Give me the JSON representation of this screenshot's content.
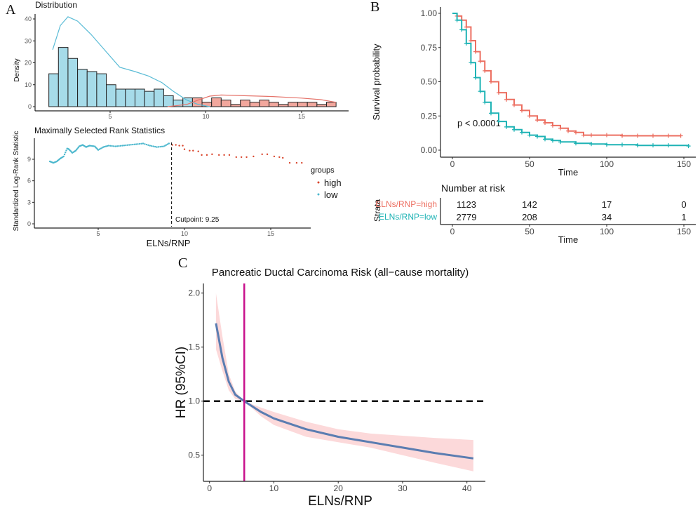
{
  "panel_labels": [
    "A",
    "B",
    "C"
  ],
  "chart_data": [
    {
      "id": "distribution",
      "type": "bar",
      "title": "Distribution",
      "xlabel": "",
      "ylabel": "Density",
      "xlim": [
        1.2,
        17.5
      ],
      "ylim": [
        0,
        42
      ],
      "xticks": [
        5,
        10,
        15
      ],
      "yticks": [
        0,
        10,
        20,
        30,
        40
      ],
      "bin_start": 1.8,
      "bin_width": 0.5,
      "colors": {
        "low": "#a6dbe9",
        "high": "#f2a79d",
        "low_line": "#5bbcd6",
        "high_line": "#e5736a"
      },
      "series": [
        {
          "name": "low",
          "values": [
            15,
            27,
            22,
            17,
            16,
            15,
            10,
            8,
            8,
            8,
            7,
            8,
            5,
            3,
            4
          ]
        },
        {
          "name": "high",
          "values": [
            4,
            2,
            4,
            3,
            1,
            3,
            2,
            3,
            2,
            1,
            2,
            2,
            2,
            1,
            2
          ]
        }
      ],
      "density": [
        {
          "name": "low",
          "x": [
            2,
            2.4,
            2.8,
            3.3,
            4,
            4.8,
            5.5,
            6.3,
            7,
            7.7,
            8.3,
            9,
            9.6,
            10.2
          ],
          "y": [
            26,
            37,
            41,
            39,
            33,
            25,
            18,
            16,
            14,
            11,
            7,
            3,
            1,
            0
          ]
        },
        {
          "name": "high",
          "x": [
            8,
            9,
            9.6,
            10.2,
            10.8,
            12,
            13.5,
            15,
            16,
            16.8
          ],
          "y": [
            0,
            1,
            3,
            4.8,
            5.3,
            5,
            4.6,
            3.9,
            3.2,
            2
          ]
        }
      ]
    },
    {
      "id": "maxstat",
      "type": "scatter",
      "title": "Maximally Selected Rank Statistics",
      "xlabel": "ELNs/RNP",
      "ylabel": "Standardized Log-Rank Statistic",
      "xlim": [
        1.5,
        17.5
      ],
      "ylim": [
        0,
        11.5
      ],
      "xticks": [
        5,
        10,
        15
      ],
      "yticks": [
        0,
        3,
        6,
        9
      ],
      "cutpoint": 9.25,
      "cutpoint_label": "Cutpoint: 9.25",
      "legend_title": "groups",
      "legend_position": "right",
      "colors": {
        "high": "#d9452c",
        "low": "#4bb7cd"
      },
      "series": [
        {
          "name": "high",
          "x": [
            9.3,
            9.5,
            9.7,
            9.9,
            10,
            10.3,
            10.5,
            10.8,
            11,
            11.3,
            11.6,
            12,
            12.3,
            12.6,
            13,
            13.3,
            13.6,
            14,
            14.5,
            14.8,
            15.2,
            15.5,
            15.7,
            16.1,
            16.5,
            16.8
          ],
          "y": [
            11.0,
            11.0,
            10.9,
            10.9,
            10.4,
            10.2,
            10.2,
            10.1,
            9.6,
            9.6,
            9.7,
            9.6,
            9.6,
            9.6,
            9.3,
            9.3,
            9.3,
            9.4,
            9.7,
            9.7,
            9.4,
            9.3,
            9.2,
            8.5,
            8.5,
            8.5
          ]
        },
        {
          "name": "low",
          "x": [
            2.2,
            2.4,
            2.6,
            2.8,
            3.0,
            3.2,
            3.3,
            3.5,
            3.7,
            3.9,
            4.1,
            4.3,
            4.5,
            4.8,
            5.0,
            5.3,
            5.6,
            6.0,
            6.4,
            6.8,
            7.2,
            7.6,
            8.0,
            8.4,
            8.8,
            9.1
          ],
          "y": [
            8.7,
            8.5,
            8.7,
            9.1,
            9.4,
            10.5,
            10.4,
            9.9,
            10.2,
            10.8,
            11.0,
            10.7,
            10.9,
            10.8,
            10.3,
            10.7,
            10.9,
            10.8,
            10.9,
            11.0,
            11.1,
            11.2,
            10.9,
            10.7,
            10.8,
            11.2
          ]
        }
      ]
    },
    {
      "id": "km",
      "type": "line",
      "xlabel": "Time",
      "ylabel": "Survival probability",
      "xlim": [
        -5,
        155
      ],
      "ylim": [
        0,
        1
      ],
      "xticks": [
        0,
        50,
        100,
        150
      ],
      "yticks": [
        "0.00",
        "0.25",
        "0.50",
        "0.75",
        "1.00"
      ],
      "pvalue": "p < 0.0001",
      "series": [
        {
          "name": "ELNs/RNP=high",
          "color": "#ec6f61",
          "x": [
            0,
            3,
            6,
            9,
            12,
            15,
            18,
            21,
            25,
            30,
            35,
            40,
            45,
            50,
            55,
            60,
            65,
            70,
            75,
            80,
            85,
            90,
            100,
            110,
            120,
            130,
            140,
            148
          ],
          "y": [
            1,
            0.98,
            0.95,
            0.9,
            0.8,
            0.72,
            0.65,
            0.58,
            0.5,
            0.42,
            0.37,
            0.33,
            0.29,
            0.25,
            0.22,
            0.2,
            0.18,
            0.16,
            0.14,
            0.13,
            0.11,
            0.11,
            0.11,
            0.105,
            0.105,
            0.105,
            0.105,
            0.105
          ]
        },
        {
          "name": "ELNs/RNP=low",
          "color": "#1fb3b5",
          "x": [
            0,
            3,
            6,
            9,
            12,
            15,
            18,
            21,
            25,
            30,
            35,
            40,
            45,
            50,
            55,
            60,
            65,
            70,
            80,
            90,
            100,
            110,
            120,
            130,
            140,
            153
          ],
          "y": [
            1,
            0.95,
            0.88,
            0.78,
            0.64,
            0.53,
            0.43,
            0.35,
            0.27,
            0.21,
            0.17,
            0.15,
            0.13,
            0.11,
            0.1,
            0.08,
            0.07,
            0.06,
            0.05,
            0.045,
            0.04,
            0.04,
            0.035,
            0.035,
            0.035,
            0.03
          ]
        }
      ]
    },
    {
      "id": "risk_table",
      "type": "table",
      "title": "Number at risk",
      "ylabel": "Strata",
      "xlabel": "Time",
      "xticks": [
        0,
        50,
        100,
        150
      ],
      "rows": [
        {
          "label": "ELNs/RNP=high",
          "color": "#ec6f61",
          "values": [
            "1123",
            "142",
            "17",
            "0"
          ]
        },
        {
          "label": "ELNs/RNP=low",
          "color": "#1fb3b5",
          "values": [
            "2779",
            "208",
            "34",
            "1"
          ]
        }
      ]
    },
    {
      "id": "rcs",
      "type": "line",
      "title": "Pancreatic Ductal Carcinoma Risk (all−cause mortality)",
      "xlabel": "ELNs/RNP",
      "ylabel": "HR (95%CI)",
      "xlim": [
        -1,
        43
      ],
      "ylim": [
        0.26,
        2.08
      ],
      "xticks": [
        0,
        10,
        20,
        30,
        40
      ],
      "yticks": [
        "0.5",
        "1.0",
        "1.5",
        "2.0"
      ],
      "reference_hr": 1.0,
      "cutoff_x": 5.4,
      "colors": {
        "line": "#5b7db1",
        "ci": "#fcd9da",
        "cutoff": "#c8108c",
        "reference": "#000000"
      },
      "x": [
        1,
        2,
        3,
        4,
        5.4,
        8,
        10,
        15,
        20,
        25,
        30,
        35,
        41
      ],
      "hr": [
        1.72,
        1.4,
        1.18,
        1.06,
        1.0,
        0.9,
        0.84,
        0.74,
        0.67,
        0.62,
        0.57,
        0.52,
        0.47
      ],
      "lower": [
        1.48,
        1.28,
        1.1,
        1.02,
        1.0,
        0.86,
        0.78,
        0.67,
        0.62,
        0.57,
        0.5,
        0.43,
        0.35
      ],
      "upper": [
        2.0,
        1.6,
        1.25,
        1.09,
        1.0,
        0.94,
        0.9,
        0.81,
        0.74,
        0.7,
        0.68,
        0.66,
        0.64
      ]
    }
  ]
}
